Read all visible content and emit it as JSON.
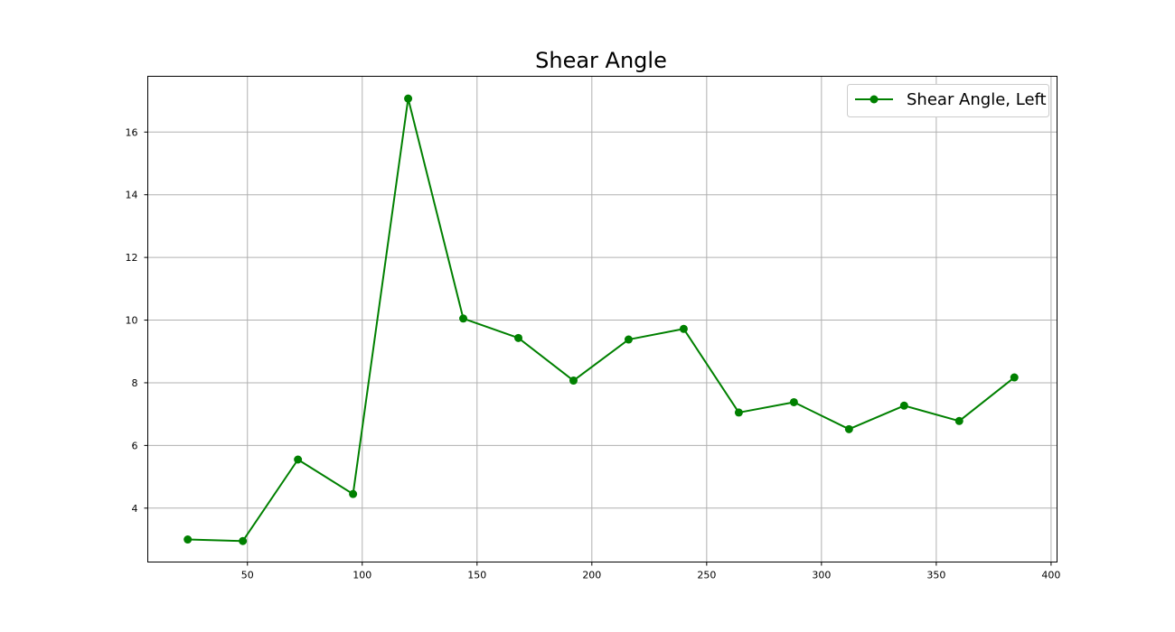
{
  "chart_data": {
    "type": "line",
    "title": "Shear Angle",
    "xlabel": "",
    "ylabel": "",
    "xlim": [
      6.6,
      402.6
    ],
    "ylim": [
      2.28,
      17.78
    ],
    "x_ticks": [
      50,
      100,
      150,
      200,
      250,
      300,
      350,
      400
    ],
    "y_ticks": [
      4,
      6,
      8,
      10,
      12,
      14,
      16
    ],
    "grid": true,
    "legend_position": "top-right",
    "series": [
      {
        "name": "Shear Angle, Left",
        "color": "#008000",
        "marker": "circle",
        "x": [
          24,
          48,
          72,
          96,
          120,
          144,
          168,
          192,
          216,
          240,
          264,
          288,
          312,
          336,
          360,
          384
        ],
        "y": [
          3.0,
          2.95,
          5.55,
          4.45,
          17.07,
          10.05,
          9.43,
          8.07,
          9.38,
          9.72,
          7.05,
          7.38,
          6.52,
          7.27,
          6.78,
          8.17
        ]
      }
    ]
  }
}
